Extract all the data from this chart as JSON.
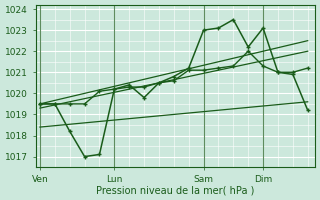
{
  "bg_color": "#cce8dc",
  "grid_color": "#b0d8c8",
  "line_color": "#1a5c1a",
  "xlabel": "Pression niveau de la mer( hPa )",
  "ylim": [
    1016.5,
    1024.2
  ],
  "yticks": [
    1017,
    1018,
    1019,
    1020,
    1021,
    1022,
    1023,
    1024
  ],
  "xtick_labels": [
    "Ven",
    "Lun",
    "Sam",
    "Dim"
  ],
  "xtick_positions": [
    0,
    5,
    11,
    15
  ],
  "vline_positions": [
    0,
    5,
    11,
    15
  ],
  "xlim": [
    -0.3,
    18.5
  ],
  "n_points": 19,
  "zigzag_x": [
    0,
    1,
    2,
    3,
    4,
    5,
    6,
    7,
    8,
    9,
    10,
    11,
    12,
    13,
    14,
    15,
    16,
    17,
    18
  ],
  "zigzag_y": [
    1019.5,
    1019.5,
    1018.2,
    1017.0,
    1017.1,
    1020.2,
    1020.4,
    1019.8,
    1020.5,
    1020.8,
    1021.2,
    1023.0,
    1023.1,
    1023.5,
    1022.2,
    1023.1,
    1021.0,
    1020.9,
    1019.2
  ],
  "smooth_x": [
    0,
    1,
    2,
    3,
    4,
    5,
    6,
    7,
    8,
    9,
    10,
    11,
    12,
    13,
    14,
    15,
    16,
    17,
    18
  ],
  "smooth_y": [
    1019.5,
    1019.5,
    1019.5,
    1019.5,
    1020.1,
    1020.2,
    1020.3,
    1020.3,
    1020.5,
    1020.6,
    1021.1,
    1021.1,
    1021.2,
    1021.3,
    1022.0,
    1021.3,
    1021.0,
    1021.0,
    1021.2
  ],
  "trend1_x": [
    0,
    18
  ],
  "trend1_y": [
    1019.5,
    1022.5
  ],
  "trend2_x": [
    0,
    18
  ],
  "trend2_y": [
    1019.3,
    1022.0
  ],
  "trend3_x": [
    0,
    18
  ],
  "trend3_y": [
    1018.4,
    1019.6
  ]
}
